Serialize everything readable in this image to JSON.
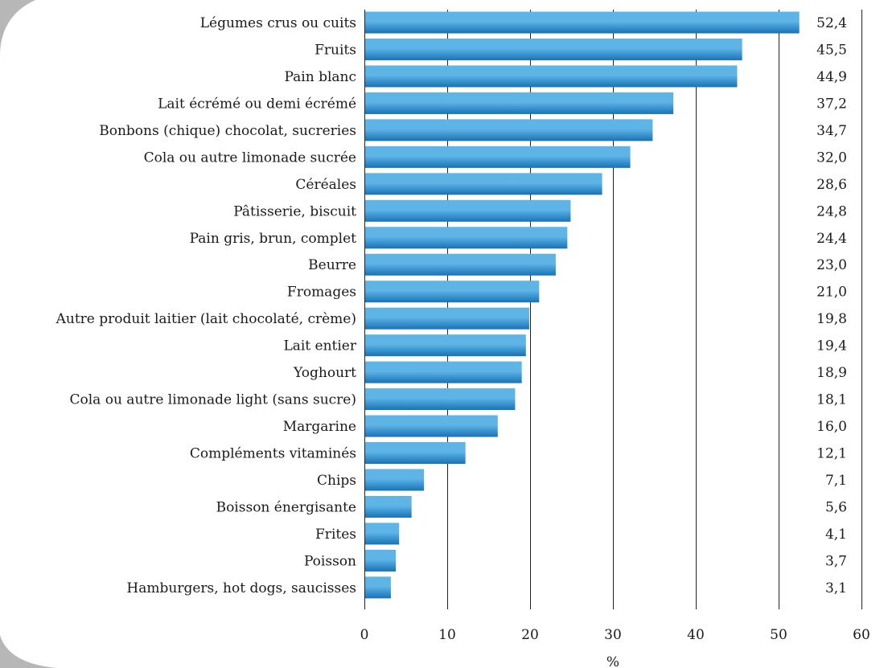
{
  "chart_data": {
    "type": "bar",
    "orientation": "horizontal",
    "categories": [
      "Légumes crus ou cuits",
      "Fruits",
      "Pain blanc",
      "Lait écrémé ou demi écrémé",
      "Bonbons (chique) chocolat, sucreries",
      "Cola ou autre limonade sucrée",
      "Céréales",
      "Pâtisserie, biscuit",
      "Pain gris, brun, complet",
      "Beurre",
      "Fromages",
      "Autre produit laitier (lait chocolaté, crème)",
      "Lait entier",
      "Yoghourt",
      "Cola ou autre limonade light (sans sucre)",
      "Margarine",
      "Compléments vitaminés",
      "Chips",
      "Boisson énergisante",
      "Frites",
      "Poisson",
      "Hamburgers, hot dogs, saucisses"
    ],
    "values": [
      52.4,
      45.5,
      44.9,
      37.2,
      34.7,
      32.0,
      28.6,
      24.8,
      24.4,
      23.0,
      21.0,
      19.8,
      19.4,
      18.9,
      18.1,
      16.0,
      12.1,
      7.1,
      5.6,
      4.1,
      3.7,
      3.1
    ],
    "value_labels": [
      "52,4",
      "45,5",
      "44,9",
      "37,2",
      "34,7",
      "32,0",
      "28,6",
      "24,8",
      "24,4",
      "23,0",
      "21,0",
      "19,8",
      "19,4",
      "18,9",
      "18,1",
      "16,0",
      "12,1",
      "7,1",
      "5,6",
      "4,1",
      "3,7",
      "3,1"
    ],
    "x_ticks": [
      "0",
      "10",
      "20",
      "30",
      "40",
      "50",
      "60"
    ],
    "xlim": [
      0,
      60
    ],
    "xlabel": "%",
    "ylabel": "",
    "title": "",
    "grid": "vertical",
    "legend": "none",
    "bar_color_light": "#5fb4e6",
    "bar_color_dark": "#1873b5",
    "grid_color": "#222222"
  },
  "decor": {
    "corner_color": "#b7b7b7"
  }
}
